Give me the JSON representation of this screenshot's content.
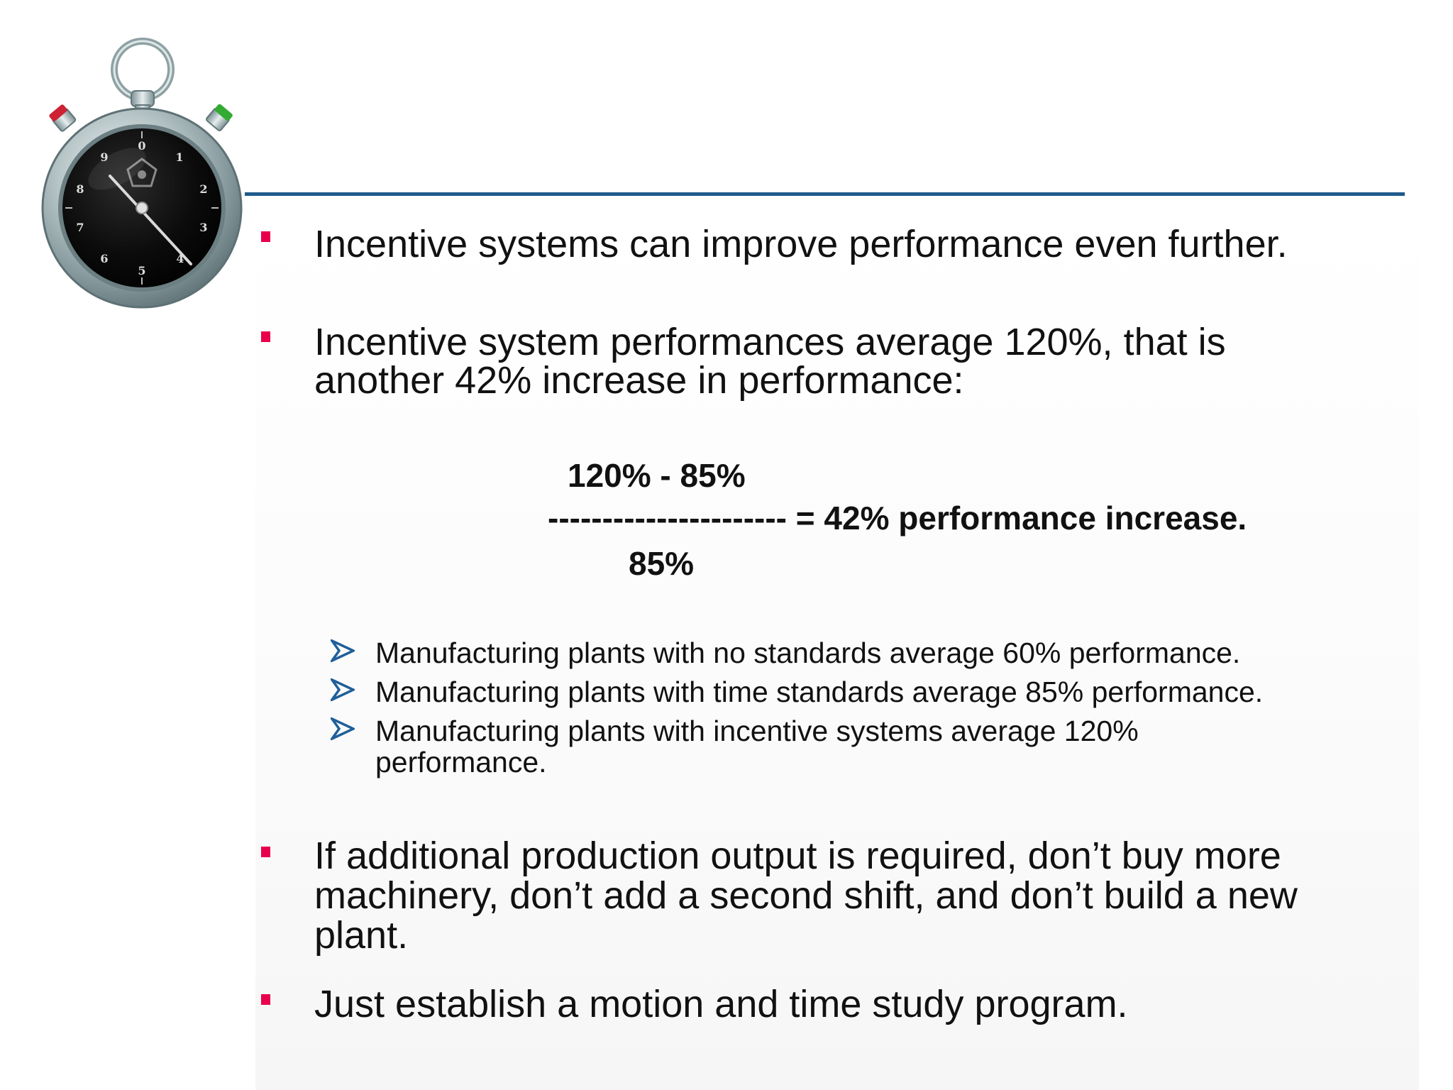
{
  "colors": {
    "bullet": "#e8004c",
    "rule": "#1e5a8a",
    "arrow": "#1f5f9a"
  },
  "icons": {
    "bullet": "square-bullet-icon",
    "sub_bullet": "arrow-bullet-icon",
    "clipart": "stopwatch-icon"
  },
  "stopwatch": {
    "dial_numbers": [
      "0",
      "1",
      "2",
      "3",
      "4",
      "5",
      "6",
      "7",
      "8",
      "9"
    ]
  },
  "bullets": {
    "b1": "Incentive systems can improve performance even further.",
    "b2_line1": "Incentive  system performances average 120%, that is",
    "b2_line2": "another 42% increase in performance:",
    "b3_line1": "If additional production output is required, don’t buy more",
    "b3_line2": "machinery, don’t add a second shift, and don’t build a new",
    "b3_line3": "plant.",
    "b4": "Just establish a motion and time study program."
  },
  "formula": {
    "numerator": "120% - 85%",
    "fraction_line": "---------------------- = 42% performance increase.",
    "denominator": "85%"
  },
  "sub_bullets": {
    "s1": "Manufacturing plants with no standards average 60% performance.",
    "s2": "Manufacturing plants with time standards average 85% performance.",
    "s3_line1": "Manufacturing plants with incentive systems average 120%",
    "s3_line2": "performance."
  }
}
